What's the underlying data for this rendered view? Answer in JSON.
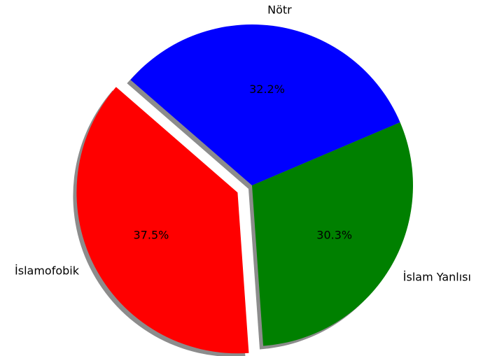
{
  "chart_data": {
    "type": "pie",
    "categories": [
      "İslam Yanlısı",
      "Nötr",
      "İslamofobik"
    ],
    "values": [
      30.3,
      32.2,
      37.5
    ],
    "value_labels": [
      "30.3%",
      "32.2%",
      "37.5%"
    ],
    "colors": [
      "#008000",
      "#0000ff",
      "#ff0000"
    ],
    "explode": [
      0,
      0,
      0.1
    ],
    "shadow": true
  }
}
